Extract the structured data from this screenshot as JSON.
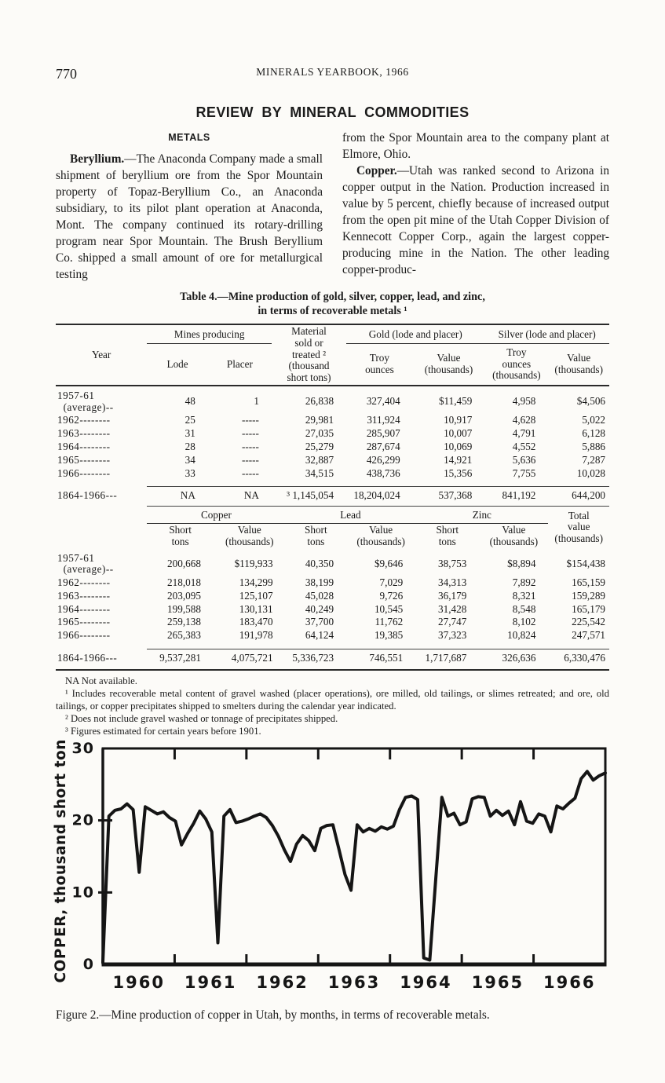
{
  "page": {
    "page_number": "770",
    "running_title": "MINERALS YEARBOOK, 1966",
    "section_title": "REVIEW BY MINERAL COMMODITIES",
    "metals_heading": "METALS"
  },
  "body": {
    "left": {
      "p1_lead": "Beryllium.",
      "p1_body": "—The Anaconda Company made a small shipment of beryllium ore from the Spor Mountain property of Topaz-Beryllium Co., an Anaconda subsidiary, to its pilot plant operation at Anaconda, Mont. The company continued its rotary-drilling program near Spor Mountain. The Brush Beryllium Co. shipped a small amount of ore for metallurgical testing"
    },
    "right": {
      "p1": "from the Spor Mountain area to the company plant at Elmore, Ohio.",
      "p2_lead": "Copper.",
      "p2_body": "—Utah was ranked second to Arizona in copper output in the Nation. Production increased in value by 5 percent, chiefly because of increased output from the open pit mine of the Utah Copper Division of Kennecott Copper Corp., again the largest copper-producing mine in the Nation. The other leading copper-produc-"
    }
  },
  "table": {
    "title_line1": "Table 4.—Mine production of gold, silver, copper, lead, and zinc,",
    "title_line2": "in terms of recoverable metals ¹",
    "s1": {
      "h": {
        "year": "Year",
        "mines": "Mines producing",
        "material": "Material\nsold or\ntreated ²\n(thousand\nshort tons)",
        "gold": "Gold (lode and placer)",
        "silver": "Silver (lode and placer)",
        "lode": "Lode",
        "placer": "Placer",
        "gold_oz": "Troy\nounces",
        "gold_val": "Value\n(thousands)",
        "silver_oz": "Troy\nounces\n(thousands)",
        "silver_val": "Value\n(thousands)"
      },
      "rows": [
        [
          "1957-61\n  (average)--",
          "48",
          "1",
          "26,838",
          "327,404",
          "$11,459",
          "4,958",
          "$4,506"
        ],
        [
          "1962--------",
          "25",
          "-----",
          "29,981",
          "311,924",
          "10,917",
          "4,628",
          "5,022"
        ],
        [
          "1963--------",
          "31",
          "-----",
          "27,035",
          "285,907",
          "10,007",
          "4,791",
          "6,128"
        ],
        [
          "1964--------",
          "28",
          "-----",
          "25,279",
          "287,674",
          "10,069",
          "4,552",
          "5,886"
        ],
        [
          "1965--------",
          "34",
          "-----",
          "32,887",
          "426,299",
          "14,921",
          "5,636",
          "7,287"
        ],
        [
          "1966--------",
          "33",
          "-----",
          "34,515",
          "438,736",
          "15,356",
          "7,755",
          "10,028"
        ]
      ],
      "total": [
        "1864-1966---",
        "NA",
        "NA",
        "³ 1,145,054",
        "18,204,024",
        "537,368",
        "841,192",
        "644,200"
      ]
    },
    "s2": {
      "h": {
        "copper": "Copper",
        "lead": "Lead",
        "zinc": "Zinc",
        "total": "Total\nvalue\n(thousands)",
        "short_tons": "Short\ntons",
        "value": "Value\n(thousands)"
      },
      "rows": [
        [
          "1957-61\n  (average)--",
          "200,668",
          "$119,933",
          "40,350",
          "$9,646",
          "38,753",
          "$8,894",
          "$154,438"
        ],
        [
          "1962--------",
          "218,018",
          "134,299",
          "38,199",
          "7,029",
          "34,313",
          "7,892",
          "165,159"
        ],
        [
          "1963--------",
          "203,095",
          "125,107",
          "45,028",
          "9,726",
          "36,179",
          "8,321",
          "159,289"
        ],
        [
          "1964--------",
          "199,588",
          "130,131",
          "40,249",
          "10,545",
          "31,428",
          "8,548",
          "165,179"
        ],
        [
          "1965--------",
          "259,138",
          "183,470",
          "37,700",
          "11,762",
          "27,747",
          "8,102",
          "225,542"
        ],
        [
          "1966--------",
          "265,383",
          "191,978",
          "64,124",
          "19,385",
          "37,323",
          "10,824",
          "247,571"
        ]
      ],
      "total": [
        "1864-1966---",
        "9,537,281",
        "4,075,721",
        "5,336,723",
        "746,551",
        "1,717,687",
        "326,636",
        "6,330,476"
      ]
    }
  },
  "footnotes": {
    "na": "NA Not available.",
    "f1": "¹ Includes recoverable metal content of gravel washed (placer operations), ore milled, old tailings, or slimes retreated; and ore, old tailings, or copper precipitates shipped to smelters during the calendar year indicated.",
    "f2": "² Does not include gravel washed or tonnage of precipitates shipped.",
    "f3": "³ Figures estimated for certain years before 1901."
  },
  "chart_data": {
    "type": "line",
    "title": "",
    "xlabel": "",
    "ylabel": "COPPER, thousand short tons",
    "frequency": "monthly",
    "start": "1960-01",
    "end": "1966-12",
    "year_labels": [
      "1960",
      "1961",
      "1962",
      "1963",
      "1964",
      "1965",
      "1966"
    ],
    "ylim": [
      0,
      30
    ],
    "yticks": [
      0,
      10,
      20,
      30
    ],
    "grid": false,
    "legend": false,
    "line_color": "#151515",
    "values": [
      0.3,
      20.6,
      21.4,
      21.6,
      22.3,
      21.5,
      12.8,
      21.9,
      21.4,
      20.9,
      21.2,
      20.4,
      19.9,
      16.6,
      18.2,
      19.6,
      21.3,
      20.2,
      18.4,
      3.0,
      20.6,
      21.5,
      19.7,
      19.9,
      20.2,
      20.6,
      20.9,
      20.4,
      19.3,
      17.8,
      15.9,
      14.3,
      16.7,
      17.9,
      17.2,
      15.8,
      18.9,
      19.3,
      19.4,
      16.0,
      12.5,
      10.3,
      19.4,
      18.4,
      18.9,
      18.5,
      19.1,
      18.8,
      19.2,
      21.5,
      23.2,
      23.4,
      22.9,
      0.9,
      0.6,
      12.0,
      23.2,
      20.6,
      21.0,
      19.4,
      19.8,
      23.0,
      23.3,
      23.2,
      20.6,
      21.4,
      20.7,
      21.3,
      19.4,
      22.6,
      19.9,
      19.6,
      20.9,
      20.6,
      18.4,
      22.0,
      21.6,
      22.4,
      23.1,
      25.8,
      26.8,
      25.6,
      26.2,
      26.6
    ]
  },
  "figure": {
    "caption": "Figure 2.—Mine production of copper in Utah, by months, in terms of recoverable metals."
  }
}
